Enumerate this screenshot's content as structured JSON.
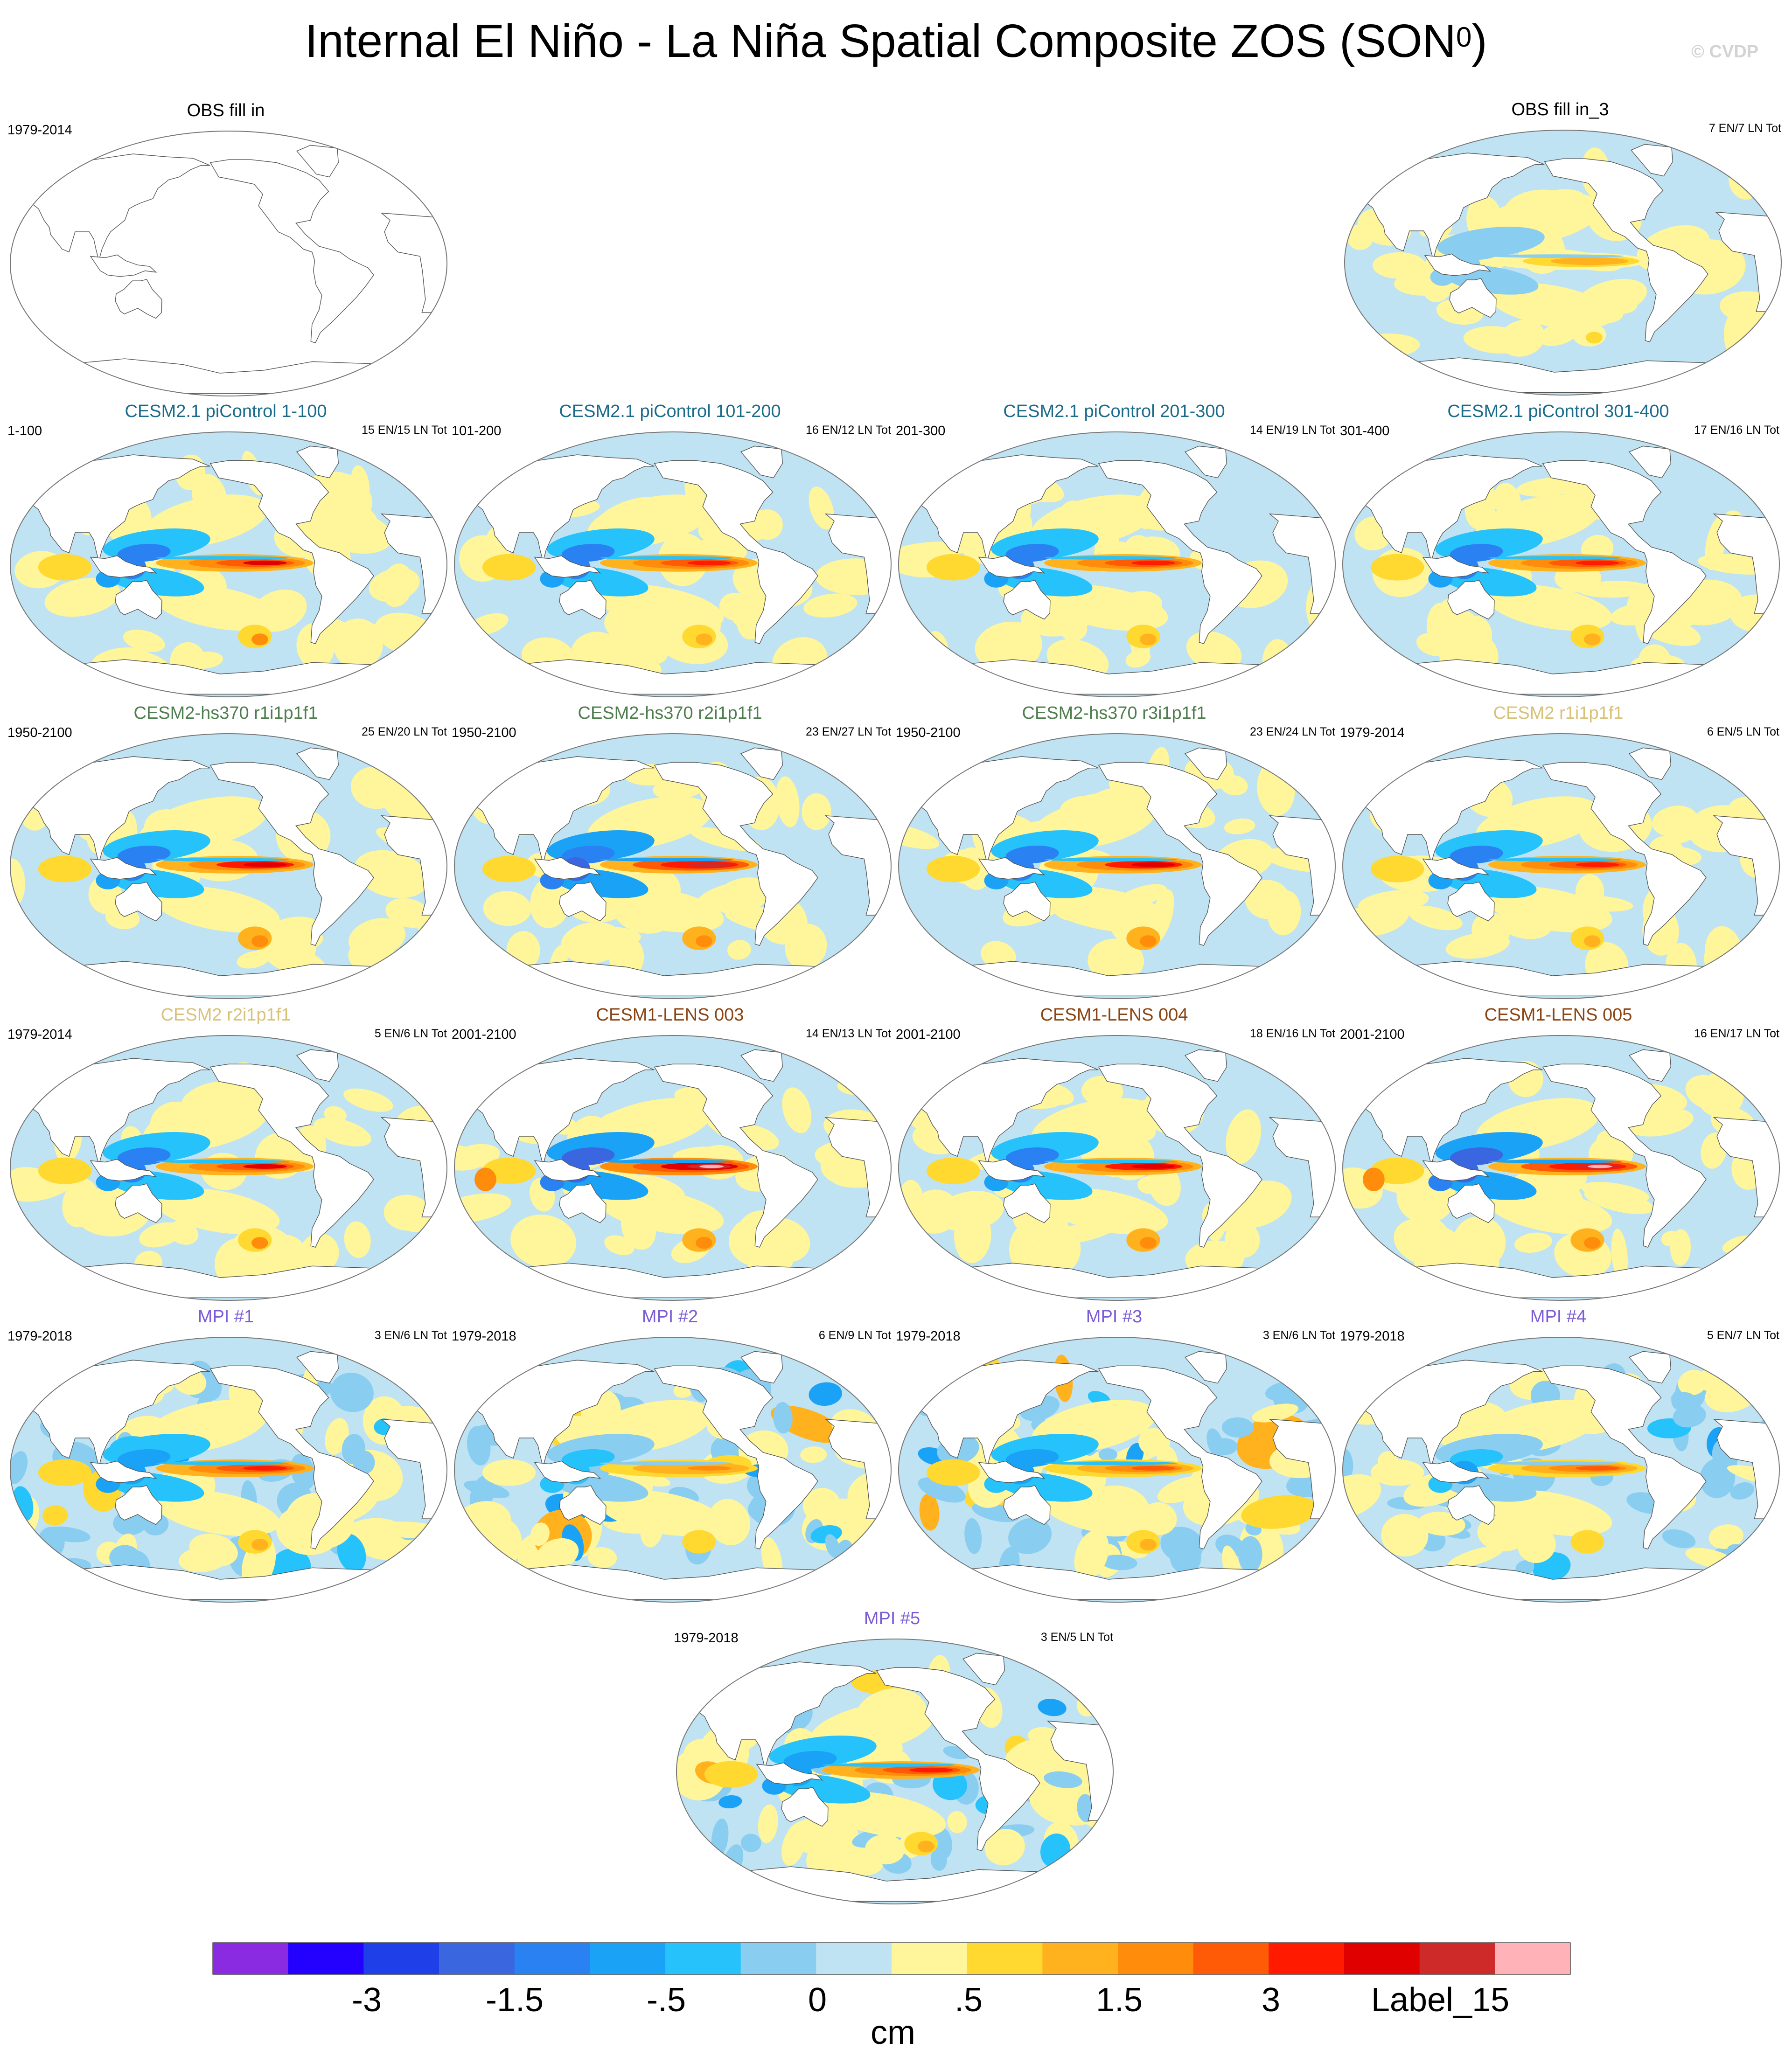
{
  "figure": {
    "title": "Internal El Niño - La Niña Spatial Composite ZOS (SON",
    "title_superscript": "0",
    "title_close": ")",
    "watermark": "© CVDP"
  },
  "chart_data": {
    "type": "heatmap",
    "description_of_values": "El Niño minus La Niña composite sea level anomaly maps (ZOS), SON season, Robinson-type global projection",
    "colorbar": {
      "units": "cm",
      "tick_labels": [
        "-3",
        "-1.5",
        "-.5",
        "0",
        ".5",
        "1.5",
        "3",
        "Label_15"
      ],
      "colors": [
        "#8a2be2",
        "#2400ff",
        "#1f3fe8",
        "#3a66e0",
        "#2a82f2",
        "#1aa2f6",
        "#25c2fb",
        "#89cdf0",
        "#bfe3f3",
        "#fff59a",
        "#ffd830",
        "#ffb21e",
        "#ff8c0a",
        "#ff5a05",
        "#ff1a00",
        "#e00000",
        "#cf2a2a",
        "#ffb3b8"
      ]
    },
    "panels": [
      {
        "title": "OBS fill in",
        "period": "1979-2014",
        "count": "",
        "title_color": "#000000",
        "mode": "empty",
        "intensity": 0
      },
      {
        "title": "OBS fill in_3",
        "period": "",
        "count": "7 EN/7 LN Tot",
        "title_color": "#000000",
        "mode": "obs",
        "intensity": 0.75
      },
      {
        "title": "CESM2.1 piControl 1-100",
        "period": "1-100",
        "count": "15 EN/15 LN Tot",
        "title_color": "#1b6b8a",
        "mode": "model",
        "intensity": 1.6
      },
      {
        "title": "CESM2.1 piControl 101-200",
        "period": "101-200",
        "count": "16 EN/12 LN Tot",
        "title_color": "#1b6b8a",
        "mode": "model",
        "intensity": 1.5
      },
      {
        "title": "CESM2.1 piControl 201-300",
        "period": "201-300",
        "count": "14 EN/19 LN Tot",
        "title_color": "#1b6b8a",
        "mode": "model",
        "intensity": 1.5
      },
      {
        "title": "CESM2.1 piControl 301-400",
        "period": "301-400",
        "count": "17 EN/16 LN Tot",
        "title_color": "#1b6b8a",
        "mode": "model",
        "intensity": 1.5
      },
      {
        "title": "CESM2-hs370 r1i1p1f1",
        "period": "1950-2100",
        "count": "25 EN/20 LN Tot",
        "title_color": "#4e7d4e",
        "mode": "model",
        "intensity": 1.7
      },
      {
        "title": "CESM2-hs370 r2i1p1f1",
        "period": "1950-2100",
        "count": "23 EN/27 LN Tot",
        "title_color": "#4e7d4e",
        "mode": "model",
        "intensity": 1.8
      },
      {
        "title": "CESM2-hs370 r3i1p1f1",
        "period": "1950-2100",
        "count": "23 EN/24 LN Tot",
        "title_color": "#4e7d4e",
        "mode": "model",
        "intensity": 1.7
      },
      {
        "title": "CESM2 r1i1p1f1",
        "period": "1979-2014",
        "count": "6 EN/5 LN Tot",
        "title_color": "#d8c27a",
        "mode": "model",
        "intensity": 1.5
      },
      {
        "title": "CESM2 r2i1p1f1",
        "period": "1979-2014",
        "count": "5 EN/6 LN Tot",
        "title_color": "#d8c27a",
        "mode": "model",
        "intensity": 1.6
      },
      {
        "title": "CESM1-LENS 003",
        "period": "2001-2100",
        "count": "14 EN/13 LN Tot",
        "title_color": "#8b4513",
        "mode": "model",
        "intensity": 2.0
      },
      {
        "title": "CESM1-LENS 004",
        "period": "2001-2100",
        "count": "18 EN/16 LN Tot",
        "title_color": "#8b4513",
        "mode": "model",
        "intensity": 1.7
      },
      {
        "title": "CESM1-LENS 005",
        "period": "2001-2100",
        "count": "16 EN/17 LN Tot",
        "title_color": "#8b4513",
        "mode": "model",
        "intensity": 1.9
      },
      {
        "title": "MPI #1",
        "period": "1979-2018",
        "count": "3 EN/6 LN Tot",
        "title_color": "#7b5cd6",
        "mode": "mpi",
        "intensity": 1.4
      },
      {
        "title": "MPI #2",
        "period": "1979-2018",
        "count": "6 EN/9 LN Tot",
        "title_color": "#7b5cd6",
        "mode": "mpi",
        "intensity": 1.0
      },
      {
        "title": "MPI #3",
        "period": "1979-2018",
        "count": "3 EN/6 LN Tot",
        "title_color": "#7b5cd6",
        "mode": "mpi",
        "intensity": 1.3
      },
      {
        "title": "MPI #4",
        "period": "1979-2018",
        "count": "5 EN/7 LN Tot",
        "title_color": "#7b5cd6",
        "mode": "mpi",
        "intensity": 1.1
      },
      {
        "title": "MPI #5",
        "period": "1979-2018",
        "count": "3 EN/5 LN Tot",
        "title_color": "#7b5cd6",
        "mode": "mpi",
        "intensity": 1.4
      }
    ]
  }
}
